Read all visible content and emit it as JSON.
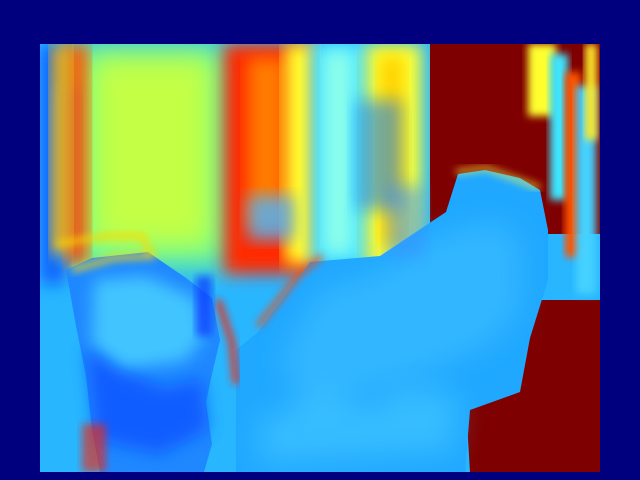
{
  "image": {
    "kind": "depth-map",
    "colormap": "jet",
    "colors": {
      "border": "#00007f",
      "near_floor": "#1f9cff",
      "far_wall": "#7f0000",
      "hot_edge": "#ff2a00",
      "mid_cyan": "#36d7ff",
      "mid_yellow": "#ffff3f"
    }
  }
}
